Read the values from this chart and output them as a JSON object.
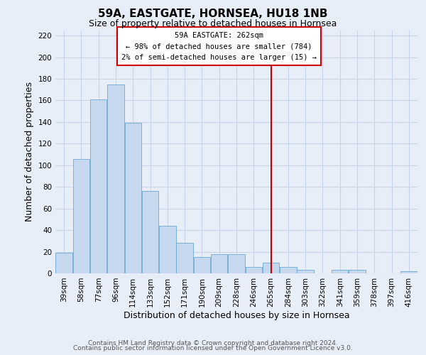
{
  "title": "59A, EASTGATE, HORNSEA, HU18 1NB",
  "subtitle": "Size of property relative to detached houses in Hornsea",
  "xlabel": "Distribution of detached houses by size in Hornsea",
  "ylabel": "Number of detached properties",
  "categories": [
    "39sqm",
    "58sqm",
    "77sqm",
    "96sqm",
    "114sqm",
    "133sqm",
    "152sqm",
    "171sqm",
    "190sqm",
    "209sqm",
    "228sqm",
    "246sqm",
    "265sqm",
    "284sqm",
    "303sqm",
    "322sqm",
    "341sqm",
    "359sqm",
    "378sqm",
    "397sqm",
    "416sqm"
  ],
  "values": [
    19,
    106,
    161,
    175,
    139,
    76,
    44,
    28,
    15,
    18,
    18,
    6,
    10,
    6,
    3,
    0,
    3,
    3,
    0,
    0,
    2
  ],
  "bar_color": "#c5d8ee",
  "bar_edge_color": "#6aaad4",
  "vline_x_index": 12,
  "vline_color": "#cc0000",
  "ylim": [
    0,
    225
  ],
  "yticks": [
    0,
    20,
    40,
    60,
    80,
    100,
    120,
    140,
    160,
    180,
    200,
    220
  ],
  "annotation_box_title": "59A EASTGATE: 262sqm",
  "annotation_line1": "← 98% of detached houses are smaller (784)",
  "annotation_line2": "2% of semi-detached houses are larger (15) →",
  "annotation_box_color": "#ffffff",
  "annotation_box_edge_color": "#cc0000",
  "footer_line1": "Contains HM Land Registry data © Crown copyright and database right 2024.",
  "footer_line2": "Contains public sector information licensed under the Open Government Licence v3.0.",
  "background_color": "#e8eef8",
  "grid_color": "#c8d4e8",
  "title_fontsize": 11,
  "subtitle_fontsize": 9,
  "axis_label_fontsize": 9,
  "tick_fontsize": 7.5,
  "footer_fontsize": 6.5
}
